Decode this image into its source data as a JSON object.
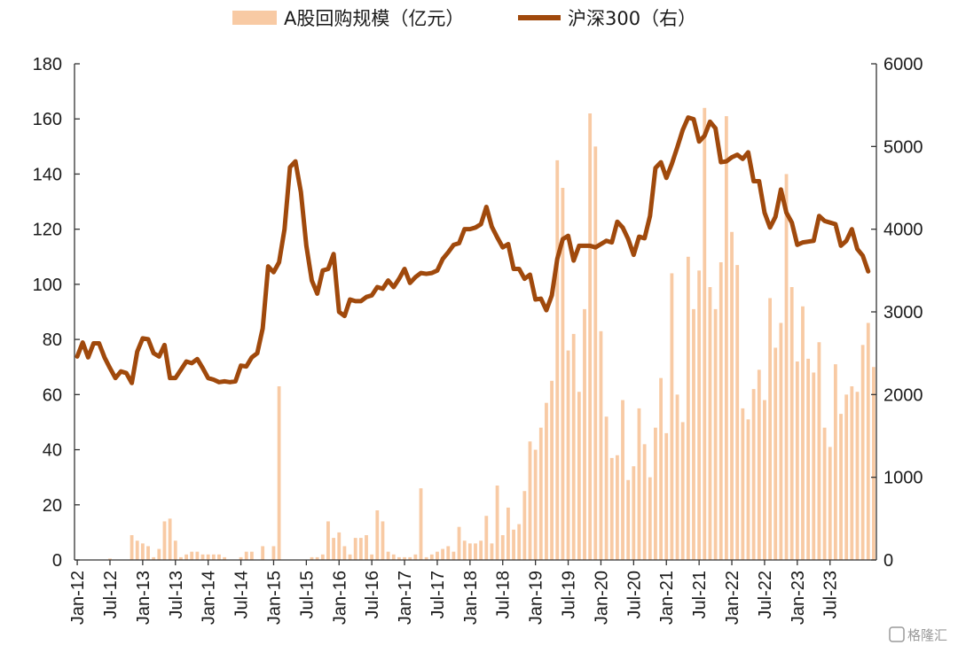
{
  "chart_data": {
    "type": "bar+line",
    "legend_placement": "top-center",
    "grid": false,
    "colors": {
      "bars": "#f8caa4",
      "line": "#a0490c",
      "axis": "#333333"
    },
    "series": [
      {
        "name": "A股回购规模（亿元）",
        "type": "bar",
        "axis": "left",
        "start": "2012-01",
        "frequency": "monthly",
        "values": [
          0,
          0,
          0,
          0,
          0,
          0,
          0.5,
          0,
          0,
          0,
          9,
          7,
          6,
          5,
          1,
          4,
          14,
          15,
          7,
          1,
          2,
          3,
          3,
          2,
          2,
          2,
          2,
          1,
          0,
          0,
          1,
          3,
          3,
          0,
          5,
          0,
          5,
          63,
          0,
          0,
          0,
          0,
          0,
          1,
          1,
          2,
          14,
          8,
          10,
          5,
          2,
          8,
          8,
          9,
          2,
          18,
          14,
          3,
          2,
          1,
          1,
          1,
          2,
          26,
          1,
          2,
          3,
          4,
          5,
          3,
          12,
          7,
          6,
          6,
          7,
          16,
          6,
          27,
          9,
          19,
          11,
          13,
          25,
          43,
          40,
          48,
          57,
          65,
          145,
          135,
          76,
          82,
          61,
          91,
          162,
          150,
          83,
          52,
          37,
          38,
          58,
          29,
          34,
          55,
          42,
          30,
          48,
          66,
          46,
          104,
          60,
          50,
          110,
          91,
          105,
          164,
          99,
          91,
          108,
          161,
          119,
          107,
          55,
          51,
          62,
          69,
          58,
          95,
          77,
          86,
          140,
          99,
          72,
          92,
          73,
          68,
          79,
          48,
          41,
          71,
          53,
          60,
          63,
          61,
          78,
          86,
          70
        ]
      },
      {
        "name": "沪深300（右）",
        "type": "line",
        "axis": "right",
        "start": "2012-01",
        "frequency": "monthly",
        "values": [
          2460,
          2630,
          2450,
          2620,
          2620,
          2450,
          2320,
          2200,
          2280,
          2260,
          2140,
          2520,
          2680,
          2670,
          2500,
          2460,
          2600,
          2200,
          2200,
          2300,
          2400,
          2380,
          2430,
          2320,
          2200,
          2180,
          2150,
          2160,
          2150,
          2160,
          2350,
          2340,
          2450,
          2500,
          2800,
          3550,
          3480,
          3600,
          4000,
          4750,
          4820,
          4450,
          3800,
          3380,
          3220,
          3500,
          3520,
          3700,
          3000,
          2950,
          3150,
          3130,
          3130,
          3180,
          3200,
          3300,
          3280,
          3380,
          3300,
          3400,
          3520,
          3350,
          3420,
          3470,
          3460,
          3470,
          3500,
          3640,
          3720,
          3810,
          3830,
          4000,
          4000,
          4020,
          4060,
          4270,
          4030,
          3900,
          3780,
          3820,
          3520,
          3520,
          3400,
          3450,
          3150,
          3160,
          3020,
          3200,
          3640,
          3880,
          3920,
          3620,
          3800,
          3800,
          3800,
          3780,
          3820,
          3860,
          3840,
          4090,
          4020,
          3880,
          3690,
          3910,
          3890,
          4160,
          4740,
          4810,
          4620,
          4790,
          4990,
          5200,
          5350,
          5330,
          5060,
          5130,
          5300,
          5220,
          4810,
          4820,
          4870,
          4900,
          4850,
          4930,
          4580,
          4580,
          4200,
          4020,
          4150,
          4480,
          4200,
          4080,
          3810,
          3840,
          3850,
          3860,
          4160,
          4100,
          4080,
          4060,
          3800,
          3860,
          4000,
          3760,
          3680,
          3490
        ]
      }
    ],
    "left_axis": {
      "min": 0,
      "max": 180,
      "ticks": [
        "0",
        "20",
        "40",
        "60",
        "80",
        "100",
        "120",
        "140",
        "160",
        "180"
      ]
    },
    "right_axis": {
      "min": 0,
      "max": 6000,
      "ticks": [
        "0",
        "1000",
        "2000",
        "3000",
        "4000",
        "5000",
        "6000"
      ]
    },
    "x_tick_labels": [
      "Jan-12",
      "Jul-12",
      "Jan-13",
      "Jul-13",
      "Jan-14",
      "Jul-14",
      "Jan-15",
      "Jul-15",
      "Jan-16",
      "Jul-16",
      "Jan-17",
      "Jul-17",
      "Jan-18",
      "Jul-18",
      "Jan-19",
      "Jul-19",
      "Jan-20",
      "Jul-20",
      "Jan-21",
      "Jul-21",
      "Jan-22",
      "Jul-22",
      "Jan-23",
      "Jul-23"
    ],
    "watermark": "格隆汇"
  }
}
